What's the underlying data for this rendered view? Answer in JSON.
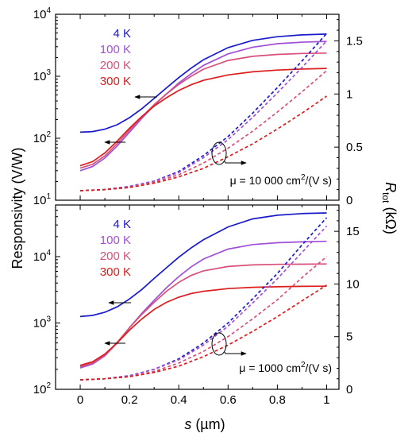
{
  "colors": {
    "4 K": "#1a1acd",
    "100 K": "#a050d8",
    "200 K": "#d8507a",
    "300 K": "#dd1c1c"
  },
  "chart_data": [
    {
      "type": "line",
      "position": "top",
      "xlim": [
        -0.1,
        1.05
      ],
      "ylim_left": [
        10,
        10000
      ],
      "left_scale": "log",
      "ylim_right": [
        0,
        1.75
      ],
      "right_ticks": [
        "0",
        "0.5",
        "1",
        "1.5"
      ],
      "left_ticks": [
        "10",
        "10",
        "10",
        "10"
      ],
      "left_tick_exponents": [
        "1",
        "2",
        "3",
        "4"
      ],
      "annotation": {
        "prefix": "μ = 10 000 cm",
        "sup": "2",
        "suffix": "/(V s)"
      },
      "legend": [
        "4 K",
        "100 K",
        "200 K",
        "300 K"
      ],
      "series": [
        {
          "name": "4 K",
          "axis": "left",
          "style": "solid",
          "x": [
            0,
            0.05,
            0.1,
            0.15,
            0.2,
            0.25,
            0.3,
            0.35,
            0.4,
            0.45,
            0.5,
            0.6,
            0.7,
            0.8,
            0.9,
            1.0
          ],
          "y": [
            125,
            128,
            140,
            165,
            215,
            300,
            440,
            650,
            950,
            1350,
            1850,
            2900,
            3800,
            4350,
            4650,
            4800
          ]
        },
        {
          "name": "100 K",
          "axis": "left",
          "style": "solid",
          "x": [
            0,
            0.05,
            0.1,
            0.15,
            0.2,
            0.25,
            0.3,
            0.35,
            0.4,
            0.45,
            0.5,
            0.6,
            0.7,
            0.8,
            0.9,
            1.0
          ],
          "y": [
            30,
            35,
            48,
            75,
            125,
            210,
            340,
            520,
            780,
            1100,
            1500,
            2300,
            2950,
            3350,
            3550,
            3650
          ]
        },
        {
          "name": "200 K",
          "axis": "left",
          "style": "solid",
          "x": [
            0,
            0.05,
            0.1,
            0.15,
            0.2,
            0.25,
            0.3,
            0.35,
            0.4,
            0.45,
            0.5,
            0.6,
            0.7,
            0.8,
            0.9,
            1.0
          ],
          "y": [
            33,
            38,
            52,
            82,
            135,
            220,
            350,
            520,
            740,
            1000,
            1300,
            1800,
            2100,
            2250,
            2330,
            2370
          ]
        },
        {
          "name": "300 K",
          "axis": "left",
          "style": "solid",
          "x": [
            0,
            0.05,
            0.1,
            0.15,
            0.2,
            0.25,
            0.3,
            0.35,
            0.4,
            0.45,
            0.5,
            0.6,
            0.7,
            0.8,
            0.9,
            1.0
          ],
          "y": [
            36,
            42,
            58,
            90,
            145,
            225,
            330,
            450,
            590,
            730,
            860,
            1050,
            1180,
            1260,
            1310,
            1340
          ]
        },
        {
          "name": "4 K",
          "axis": "right",
          "style": "dashed",
          "x": [
            0,
            0.1,
            0.2,
            0.3,
            0.4,
            0.5,
            0.6,
            0.7,
            0.8,
            0.9,
            1.0
          ],
          "y": [
            0.09,
            0.1,
            0.13,
            0.18,
            0.27,
            0.42,
            0.6,
            0.82,
            1.06,
            1.31,
            1.57
          ]
        },
        {
          "name": "100 K",
          "axis": "right",
          "style": "dashed",
          "x": [
            0,
            0.1,
            0.2,
            0.3,
            0.4,
            0.5,
            0.6,
            0.7,
            0.8,
            0.9,
            1.0
          ],
          "y": [
            0.09,
            0.1,
            0.13,
            0.18,
            0.26,
            0.4,
            0.57,
            0.78,
            1.01,
            1.25,
            1.5
          ]
        },
        {
          "name": "200 K",
          "axis": "right",
          "style": "dashed",
          "x": [
            0,
            0.1,
            0.2,
            0.3,
            0.4,
            0.5,
            0.6,
            0.7,
            0.8,
            0.9,
            1.0
          ],
          "y": [
            0.09,
            0.1,
            0.12,
            0.17,
            0.24,
            0.35,
            0.49,
            0.65,
            0.83,
            1.02,
            1.22
          ]
        },
        {
          "name": "300 K",
          "axis": "right",
          "style": "dashed",
          "x": [
            0,
            0.1,
            0.2,
            0.3,
            0.4,
            0.5,
            0.6,
            0.7,
            0.8,
            0.9,
            1.0
          ],
          "y": [
            0.09,
            0.1,
            0.12,
            0.16,
            0.22,
            0.3,
            0.41,
            0.53,
            0.67,
            0.82,
            0.98
          ]
        }
      ]
    },
    {
      "type": "line",
      "position": "bottom",
      "xlim": [
        -0.1,
        1.05
      ],
      "ylim_left": [
        100,
        60000
      ],
      "left_scale": "log",
      "ylim_right": [
        0,
        17.5
      ],
      "right_ticks": [
        "0",
        "5",
        "10",
        "15"
      ],
      "left_ticks": [
        "10",
        "10",
        "10"
      ],
      "left_tick_exponents": [
        "2",
        "3",
        "4"
      ],
      "annotation": {
        "prefix": "μ = 1000 cm",
        "sup": "2",
        "suffix": "/(V s)"
      },
      "legend": [
        "4 K",
        "100 K",
        "200 K",
        "300 K"
      ],
      "series": [
        {
          "name": "4 K",
          "axis": "left",
          "style": "solid",
          "x": [
            0,
            0.05,
            0.1,
            0.15,
            0.2,
            0.25,
            0.3,
            0.35,
            0.4,
            0.45,
            0.5,
            0.6,
            0.7,
            0.8,
            0.9,
            1.0
          ],
          "y": [
            1250,
            1300,
            1450,
            1750,
            2300,
            3200,
            4700,
            6800,
            9800,
            13500,
            18000,
            28000,
            37000,
            42000,
            44500,
            45500
          ]
        },
        {
          "name": "100 K",
          "axis": "left",
          "style": "solid",
          "x": [
            0,
            0.05,
            0.1,
            0.15,
            0.2,
            0.25,
            0.3,
            0.35,
            0.4,
            0.45,
            0.5,
            0.6,
            0.7,
            0.8,
            0.9,
            1.0
          ],
          "y": [
            210,
            240,
            320,
            500,
            850,
            1400,
            2200,
            3400,
            5000,
            7000,
            9200,
            13000,
            15200,
            16200,
            16700,
            17000
          ]
        },
        {
          "name": "200 K",
          "axis": "left",
          "style": "solid",
          "x": [
            0,
            0.05,
            0.1,
            0.15,
            0.2,
            0.25,
            0.3,
            0.35,
            0.4,
            0.45,
            0.5,
            0.6,
            0.7,
            0.8,
            0.9,
            1.0
          ],
          "y": [
            220,
            250,
            330,
            510,
            850,
            1350,
            2050,
            3000,
            4100,
            5200,
            6100,
            7100,
            7500,
            7650,
            7700,
            7750
          ]
        },
        {
          "name": "300 K",
          "axis": "left",
          "style": "solid",
          "x": [
            0,
            0.05,
            0.1,
            0.15,
            0.2,
            0.25,
            0.3,
            0.35,
            0.4,
            0.45,
            0.5,
            0.6,
            0.7,
            0.8,
            0.9,
            1.0
          ],
          "y": [
            230,
            260,
            340,
            500,
            780,
            1150,
            1600,
            2050,
            2450,
            2780,
            3000,
            3300,
            3450,
            3520,
            3560,
            3580
          ]
        },
        {
          "name": "4 K",
          "axis": "right",
          "style": "dashed",
          "x": [
            0,
            0.1,
            0.2,
            0.3,
            0.4,
            0.5,
            0.6,
            0.7,
            0.8,
            0.9,
            1.0
          ],
          "y": [
            0.9,
            1.0,
            1.3,
            1.9,
            2.9,
            4.4,
            6.3,
            8.6,
            11.0,
            13.7,
            16.3
          ]
        },
        {
          "name": "100 K",
          "axis": "right",
          "style": "dashed",
          "x": [
            0,
            0.1,
            0.2,
            0.3,
            0.4,
            0.5,
            0.6,
            0.7,
            0.8,
            0.9,
            1.0
          ],
          "y": [
            0.9,
            1.0,
            1.3,
            1.9,
            2.8,
            4.2,
            6.0,
            8.2,
            10.5,
            13.0,
            15.5
          ]
        },
        {
          "name": "200 K",
          "axis": "right",
          "style": "dashed",
          "x": [
            0,
            0.1,
            0.2,
            0.3,
            0.4,
            0.5,
            0.6,
            0.7,
            0.8,
            0.9,
            1.0
          ],
          "y": [
            0.9,
            1.0,
            1.2,
            1.7,
            2.5,
            3.6,
            5.0,
            6.7,
            8.5,
            10.6,
            12.6
          ]
        },
        {
          "name": "300 K",
          "axis": "right",
          "style": "dashed",
          "x": [
            0,
            0.1,
            0.2,
            0.3,
            0.4,
            0.5,
            0.6,
            0.7,
            0.8,
            0.9,
            1.0
          ],
          "y": [
            0.9,
            1.0,
            1.2,
            1.6,
            2.2,
            3.1,
            4.2,
            5.5,
            6.9,
            8.4,
            9.9
          ]
        }
      ]
    }
  ],
  "axes": {
    "ylabel_left": "Responsivity (V/W)",
    "ylabel_right_main": "R",
    "ylabel_right_sub": "tot",
    "ylabel_right_unit": " (kΩ)",
    "xlabel_var": "s",
    "xlabel_unit": " (µm)",
    "x_ticks": [
      "0",
      "0.2",
      "0.4",
      "0.6",
      "0.8",
      "1"
    ]
  }
}
